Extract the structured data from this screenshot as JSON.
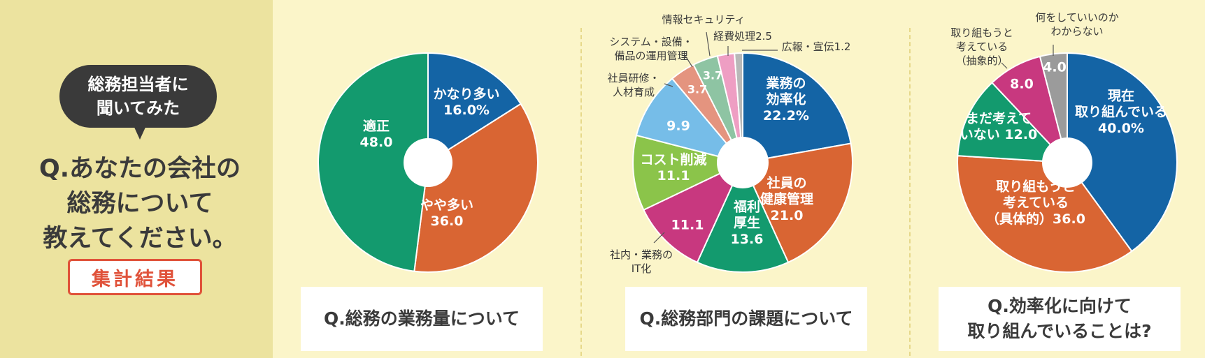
{
  "header": {
    "bubble_lines": [
      "総務担当者に",
      "聞いてみた"
    ],
    "question_lines": [
      "Q.あなたの会社の",
      "総務について",
      "教えてください。"
    ],
    "result_label": "集計結果"
  },
  "questions": [
    {
      "lines": [
        "Q.総務の業務量について"
      ]
    },
    {
      "lines": [
        "Q.総務部門の課題について"
      ]
    },
    {
      "lines": [
        "Q.効率化に向けて",
        "取り組んでいることは?"
      ]
    }
  ],
  "colors": {
    "blue": "#1464a5",
    "orange": "#d96533",
    "green": "#139a6e",
    "teal": "#139a6e",
    "pink": "#c8387f",
    "gray": "#9b9b9b",
    "lightgreen": "#8bc44a",
    "lightblue": "#76bde8",
    "salmon": "#e4947f",
    "mint": "#8ec4a3",
    "lightpink": "#ee9ec3"
  },
  "chart_data": [
    {
      "type": "pie",
      "title": "Q.総務の業務量について",
      "slices": [
        {
          "label": "かなり多い",
          "value": 16.0,
          "display": "16.0%",
          "color": "#1464a5"
        },
        {
          "label": "やや多い",
          "value": 36.0,
          "display": "36.0",
          "color": "#d96533"
        },
        {
          "label": "適正",
          "value": 48.0,
          "display": "48.0",
          "color": "#139a6e"
        }
      ]
    },
    {
      "type": "pie",
      "title": "Q.総務部門の課題について",
      "slices": [
        {
          "label": "業務の効率化",
          "value": 22.2,
          "display": "22.2%",
          "color": "#1464a5"
        },
        {
          "label": "社員の健康管理",
          "value": 21.0,
          "display": "21.0",
          "color": "#d96533"
        },
        {
          "label": "福利厚生",
          "value": 13.6,
          "display": "13.6",
          "color": "#139a6e"
        },
        {
          "label": "社内・業務のIT化",
          "value": 11.1,
          "display": "11.1",
          "color": "#c8387f"
        },
        {
          "label": "コスト削減",
          "value": 11.1,
          "display": "11.1",
          "color": "#8bc44a"
        },
        {
          "label": "社員研修・人材育成",
          "value": 9.9,
          "display": "9.9",
          "color": "#76bde8"
        },
        {
          "label": "システム・設備・備品の運用管理",
          "value": 3.7,
          "display": "3.7",
          "color": "#e4947f"
        },
        {
          "label": "情報セキュリティ",
          "value": 3.7,
          "display": "3.7",
          "color": "#8ec4a3"
        },
        {
          "label": "経費処理",
          "value": 2.5,
          "display": "2.5",
          "color": "#ee9ec3"
        },
        {
          "label": "広報・宣伝",
          "value": 1.2,
          "display": "1.2",
          "color": "#b8b8b8"
        }
      ]
    },
    {
      "type": "pie",
      "title": "Q.効率化に向けて取り組んでいることは?",
      "slices": [
        {
          "label": "現在取り組んでいる",
          "value": 40.0,
          "display": "40.0%",
          "color": "#1464a5"
        },
        {
          "label": "取り組もうと考えている(具体的)",
          "value": 36.0,
          "display": "36.0",
          "color": "#d96533"
        },
        {
          "label": "まだ考えていない",
          "value": 12.0,
          "display": "12.0",
          "color": "#139a6e"
        },
        {
          "label": "取り組もうと考えている(抽象的)",
          "value": 8.0,
          "display": "8.0",
          "color": "#c8387f"
        },
        {
          "label": "何をしていいのかわからない",
          "value": 4.0,
          "display": "4.0",
          "color": "#9b9b9b"
        }
      ]
    }
  ]
}
